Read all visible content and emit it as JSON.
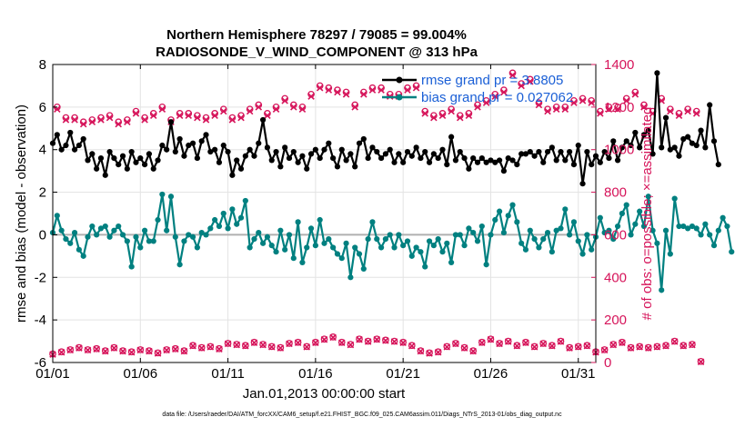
{
  "title": {
    "line1": "Northern Hemisphere 78297 / 79085 = 99.004%",
    "line2": "RADIOSONDE_V_WIND_COMPONENT @ 313 hPa"
  },
  "footer": "data file: /Users/raeder/DAI/ATM_forcXX/CAM6_setup/f.e21.FHIST_BGC.f09_025.CAM6assim.011/Diags_NTrS_2013-01/obs_diag_output.nc",
  "legend": {
    "rmse": "rmse grand pr = 3.8805",
    "bias": "bias grand pr = 0.027062"
  },
  "colors": {
    "rmse": "#000000",
    "bias": "#008080",
    "obs": "#d6145a",
    "zero_line": "#b0b0b0",
    "legend_text": "#1a5fd6"
  },
  "chart_data": {
    "type": "line",
    "title": "Northern Hemisphere 78297 / 79085 = 99.004% / RADIOSONDE_V_WIND_COMPONENT @ 313 hPa",
    "xlabel": "Jan.01,2013 00:00:00 start",
    "ylabel": "rmse and bias (model - observation)",
    "y2label": "# of obs: o=possible; ×=assimilated",
    "xlim": [
      1,
      32
    ],
    "ylim": [
      -6,
      8
    ],
    "y2lim": [
      0,
      1400
    ],
    "xticks": [
      1,
      6,
      11,
      16,
      21,
      26,
      31
    ],
    "xtick_labels": [
      "01/01",
      "01/06",
      "01/11",
      "01/16",
      "01/21",
      "01/26",
      "01/31"
    ],
    "yticks": [
      -6,
      -4,
      -2,
      0,
      2,
      4,
      6,
      8
    ],
    "ytick_labels": [
      "-6",
      "-4",
      "-2",
      "0",
      "2",
      "4",
      "6",
      "8"
    ],
    "y2ticks": [
      0,
      200,
      400,
      600,
      800,
      1000,
      1200,
      1400
    ],
    "y2tick_labels": [
      "0",
      "200",
      "400",
      "600",
      "800",
      "1000",
      "1200",
      "1400"
    ],
    "grid": true,
    "legend_position": "top-right",
    "x_start": 1.0,
    "x_step": 0.25,
    "series": [
      {
        "name": "rmse grand pr = 3.8805",
        "axis": "left",
        "values": [
          4.3,
          4.7,
          4.0,
          4.2,
          4.8,
          4.0,
          4.2,
          4.5,
          3.5,
          3.8,
          3.1,
          3.6,
          2.8,
          3.9,
          3.6,
          3.3,
          3.7,
          3.1,
          3.9,
          3.4,
          3.6,
          3.3,
          3.8,
          3.1,
          3.5,
          4.2,
          4.0,
          5.3,
          3.9,
          4.5,
          3.7,
          4.2,
          4.3,
          3.6,
          4.4,
          4.7,
          3.9,
          4.0,
          3.4,
          4.2,
          3.9,
          2.8,
          3.5,
          3.1,
          3.7,
          4.0,
          3.7,
          4.3,
          5.4,
          4.1,
          3.5,
          3.9,
          3.2,
          4.1,
          3.6,
          3.9,
          3.4,
          3.7,
          3.1,
          3.8,
          4.0,
          3.6,
          4.0,
          4.3,
          3.6,
          3.2,
          4.0,
          3.5,
          3.8,
          3.2,
          4.3,
          4.5,
          3.6,
          4.1,
          3.9,
          3.6,
          3.8,
          4.0,
          3.4,
          3.8,
          3.4,
          3.9,
          3.7,
          4.1,
          3.6,
          3.9,
          3.4,
          3.8,
          3.6,
          4.0,
          3.3,
          4.6,
          3.5,
          3.9,
          3.6,
          3.1,
          3.6,
          3.4,
          3.6,
          3.4,
          3.5,
          3.4,
          3.5,
          3.0,
          3.6,
          3.5,
          3.3,
          3.8,
          3.8,
          3.9,
          3.7,
          3.9,
          3.4,
          3.9,
          4.1,
          3.5,
          3.9,
          3.5,
          3.9,
          3.3,
          4.2,
          2.4,
          3.9,
          3.3,
          3.7,
          3.4,
          3.9,
          3.6,
          4.4,
          3.5,
          4.1,
          4.4,
          4.2,
          4.8,
          4.1,
          4.7,
          4.9,
          3.8,
          7.6,
          4.1,
          5.5,
          4.0,
          4.1,
          3.7,
          4.5,
          4.6,
          4.3,
          4.2,
          4.9,
          4.1,
          6.1,
          4.4,
          3.3
        ]
      },
      {
        "name": "bias grand pr = 0.027062",
        "axis": "left",
        "values": [
          0.1,
          0.9,
          0.2,
          -0.2,
          -0.4,
          0.1,
          -0.7,
          -1.0,
          -0.1,
          0.4,
          0.0,
          0.3,
          0.4,
          -0.1,
          0.2,
          0.4,
          0.0,
          -0.3,
          -1.5,
          -0.1,
          -0.6,
          0.2,
          -0.3,
          -0.3,
          0.7,
          1.9,
          0.2,
          1.8,
          -0.1,
          -1.4,
          -0.3,
          0.0,
          -0.1,
          -0.6,
          0.1,
          0.0,
          0.3,
          0.7,
          0.4,
          1.0,
          0.3,
          1.2,
          0.5,
          0.8,
          1.6,
          -0.6,
          -0.2,
          0.1,
          -0.4,
          -0.1,
          -0.5,
          -0.8,
          0.2,
          -0.7,
          0.0,
          -1.1,
          0.6,
          -1.3,
          -0.6,
          0.3,
          -0.5,
          0.7,
          -0.4,
          -0.2,
          -0.6,
          -0.9,
          -1.1,
          -0.4,
          -2.0,
          -0.6,
          -0.9,
          -1.6,
          -0.2,
          0.6,
          -0.2,
          -0.6,
          -0.2,
          0.0,
          -0.6,
          0.0,
          -0.5,
          -0.3,
          -1.0,
          -0.6,
          -0.8,
          -1.5,
          -0.3,
          -0.5,
          -0.2,
          -0.8,
          -0.4,
          -1.3,
          0.0,
          0.0,
          -0.5,
          0.3,
          0.1,
          -0.3,
          0.4,
          -1.4,
          0.0,
          0.7,
          1.1,
          0.1,
          0.9,
          1.4,
          0.6,
          -0.4,
          -0.7,
          0.2,
          -0.2,
          -0.6,
          -0.2,
          0.1,
          -0.8,
          0.2,
          0.3,
          1.2,
          0.0,
          0.6,
          -0.3,
          -0.9,
          0.0,
          -0.7,
          -0.1,
          0.8,
          0.1,
          0.2,
          -0.2,
          0.4,
          1.0,
          1.4,
          0.0,
          0.5,
          1.1,
          0.4,
          1.8,
          0.2,
          -0.4,
          -2.6,
          0.2,
          -0.9,
          1.7,
          0.4,
          0.4,
          0.3,
          0.4,
          0.3,
          0.0,
          0.5,
          0.0,
          -0.5,
          0.2,
          0.8,
          0.4,
          -0.8
        ]
      },
      {
        "name": "# of obs possible (o)",
        "axis": "right",
        "values": [
          40,
          1200,
          50,
          1150,
          60,
          1150,
          70,
          1130,
          60,
          1140,
          65,
          1150,
          55,
          1160,
          70,
          1130,
          55,
          1140,
          50,
          1180,
          60,
          1150,
          55,
          1170,
          45,
          1200,
          60,
          1140,
          65,
          1170,
          55,
          1170,
          80,
          1160,
          70,
          1150,
          75,
          1170,
          65,
          1190,
          90,
          1150,
          85,
          1160,
          80,
          1190,
          95,
          1210,
          85,
          1170,
          75,
          1200,
          70,
          1240,
          90,
          1210,
          95,
          1200,
          75,
          1260,
          95,
          1300,
          110,
          1290,
          120,
          1280,
          95,
          1270,
          85,
          1210,
          110,
          1270,
          100,
          1290,
          110,
          1290,
          105,
          1260,
          100,
          1260,
          95,
          1290,
          80,
          1300,
          55,
          1180,
          45,
          1160,
          50,
          1170,
          75,
          1190,
          90,
          1160,
          70,
          1170,
          55,
          1210,
          95,
          1230,
          110,
          1260,
          90,
          1280,
          100,
          1360,
          80,
          1310,
          95,
          1330,
          75,
          1220,
          90,
          1190,
          80,
          1200,
          100,
          1200,
          70,
          1230,
          75,
          1240,
          80,
          1230,
          50,
          1180,
          60,
          1200,
          85,
          1200,
          95,
          1240,
          70,
          1270,
          75,
          1210,
          70,
          1180,
          75,
          1240,
          80,
          1190,
          100,
          1170,
          80,
          1190,
          85,
          1180,
          5
        ]
      },
      {
        "name": "# of obs assimilated (×)",
        "axis": "right",
        "values": [
          38,
          1190,
          48,
          1140,
          58,
          1140,
          68,
          1120,
          58,
          1130,
          63,
          1140,
          53,
          1150,
          68,
          1120,
          53,
          1130,
          48,
          1170,
          58,
          1140,
          53,
          1160,
          43,
          1190,
          58,
          1130,
          63,
          1160,
          53,
          1160,
          78,
          1150,
          68,
          1140,
          73,
          1160,
          63,
          1180,
          88,
          1140,
          83,
          1150,
          78,
          1180,
          93,
          1200,
          83,
          1160,
          73,
          1190,
          68,
          1230,
          88,
          1200,
          93,
          1190,
          73,
          1250,
          93,
          1290,
          108,
          1280,
          118,
          1270,
          93,
          1260,
          83,
          1200,
          108,
          1260,
          98,
          1280,
          108,
          1280,
          103,
          1250,
          98,
          1250,
          93,
          1280,
          78,
          1290,
          53,
          1170,
          43,
          1150,
          48,
          1160,
          73,
          1180,
          88,
          1150,
          68,
          1160,
          53,
          1200,
          93,
          1220,
          108,
          1250,
          88,
          1270,
          98,
          1350,
          78,
          1300,
          93,
          1320,
          73,
          1210,
          88,
          1180,
          78,
          1190,
          98,
          1190,
          68,
          1220,
          73,
          1230,
          78,
          1220,
          48,
          1170,
          58,
          1190,
          83,
          1190,
          93,
          1230,
          68,
          1260,
          73,
          1200,
          68,
          1170,
          73,
          1230,
          78,
          1180,
          98,
          1160,
          78,
          1180,
          83,
          1170,
          3
        ]
      }
    ]
  }
}
